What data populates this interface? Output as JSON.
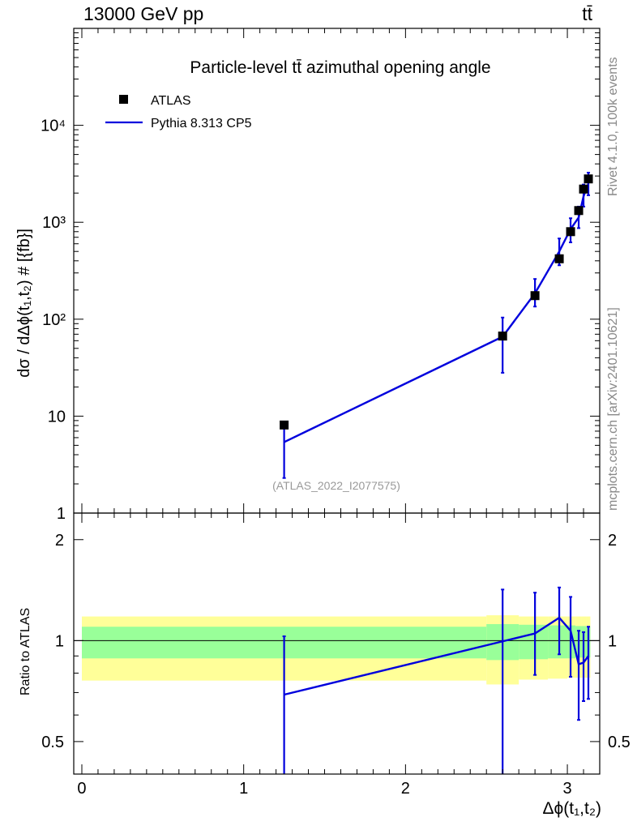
{
  "header": {
    "energy_label": "13000 GeV pp",
    "process_label": "tt̄"
  },
  "side_labels": {
    "rivet": "Rivet 4.1.0,  100k events",
    "mcplots": "mcplots.cern.ch [arXiv:2401.10621]"
  },
  "colors": {
    "data": "#000000",
    "mc": "#0000dd",
    "band_inner": "#99ff99",
    "band_outer": "#ffff99"
  },
  "chart_data": [
    {
      "type": "scatter",
      "panel": "main",
      "title": "Particle-level tt̄ azimuthal opening angle",
      "watermark": "(ATLAS_2022_I2077575)",
      "ylabel": "dσ / dΔϕ(t₁,t₂) # [{fb}]",
      "yscale": "log",
      "ylim": [
        1,
        100000
      ],
      "xlim": [
        -0.05,
        3.2
      ],
      "ytick_labels": [
        "1",
        "10",
        "10²",
        "10³",
        "10⁴"
      ],
      "legend": {
        "placement": "top-left",
        "entries": [
          "ATLAS",
          "Pythia 8.313 CP5"
        ]
      },
      "series": [
        {
          "name": "ATLAS",
          "style": "markers",
          "x": [
            1.25,
            2.6,
            2.8,
            2.95,
            3.02,
            3.07,
            3.1,
            3.13
          ],
          "y": [
            8.1,
            67,
            175,
            420,
            800,
            1320,
            2200,
            2800
          ]
        },
        {
          "name": "Pythia 8.313 CP5",
          "style": "line",
          "x": [
            1.25,
            2.6,
            2.8,
            2.95,
            3.02,
            3.07,
            3.1,
            3.13
          ],
          "y": [
            5.4,
            66,
            185,
            500,
            850,
            1120,
            1850,
            2500
          ],
          "err_low": [
            2.3,
            28,
            135,
            360,
            620,
            870,
            1450,
            1900
          ],
          "err_high": [
            8.3,
            104,
            260,
            680,
            1100,
            1450,
            2450,
            3250
          ]
        }
      ]
    },
    {
      "type": "line",
      "panel": "ratio",
      "xlabel": "Δϕ(t₁,t₂)",
      "ylabel": "Ratio to ATLAS",
      "ylim": [
        0.4,
        2.4
      ],
      "xticks": [
        0,
        1,
        2,
        3
      ],
      "xtick_labels": [
        "0",
        "1",
        "2",
        "3"
      ],
      "yticks": [
        0.5,
        1,
        2
      ],
      "ytick_labels": [
        "0.5",
        "1",
        "2"
      ],
      "reference_line": 1,
      "bands": {
        "x_edges": [
          0.0,
          2.5,
          2.7,
          2.88,
          3.0,
          3.05,
          3.085,
          3.115,
          3.142
        ],
        "inner_low": [
          0.885,
          0.875,
          0.88,
          0.885,
          0.885,
          0.89,
          0.89,
          0.89
        ],
        "inner_high": [
          1.1,
          1.12,
          1.115,
          1.11,
          1.11,
          1.105,
          1.105,
          1.1
        ],
        "outer_low": [
          0.76,
          0.74,
          0.765,
          0.77,
          0.775,
          0.775,
          0.775,
          0.775
        ],
        "outer_high": [
          1.18,
          1.19,
          1.18,
          1.18,
          1.18,
          1.18,
          1.18,
          1.18
        ]
      },
      "series": [
        {
          "name": "Pythia 8.313 CP5",
          "x": [
            1.25,
            2.6,
            2.8,
            2.95,
            3.02,
            3.07,
            3.1,
            3.13
          ],
          "y": [
            0.69,
            0.995,
            1.05,
            1.17,
            1.07,
            0.85,
            0.86,
            0.9
          ],
          "err_low": [
            0.3,
            0.38,
            0.79,
            0.91,
            0.78,
            0.58,
            0.66,
            0.67
          ],
          "err_high": [
            1.03,
            1.42,
            1.39,
            1.44,
            1.35,
            1.07,
            1.06,
            1.1
          ]
        }
      ]
    }
  ]
}
